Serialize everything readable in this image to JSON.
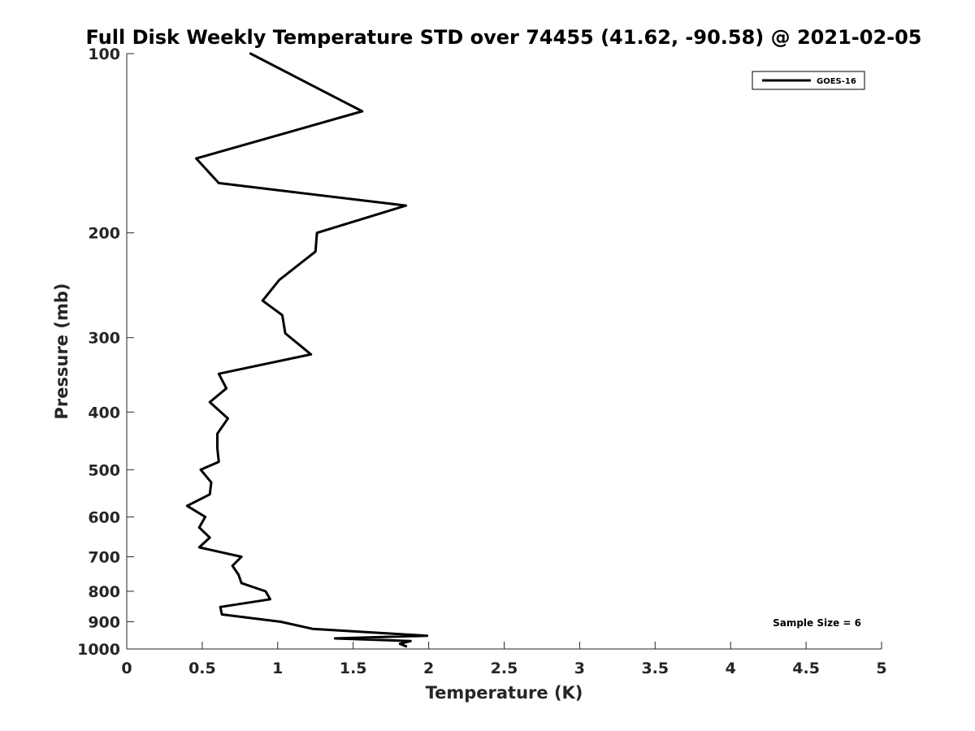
{
  "chart_data": {
    "type": "line",
    "title": "Full Disk Weekly Temperature STD over 74455 (41.62, -90.58) @ 2021-02-05",
    "xlabel": "Temperature (K)",
    "ylabel": "Pressure (mb)",
    "xlim": [
      0,
      5
    ],
    "ylim": [
      100,
      1000
    ],
    "y_scale": "log",
    "y_reversed": true,
    "x_ticks": [
      0,
      0.5,
      1,
      1.5,
      2,
      2.5,
      3,
      3.5,
      4,
      4.5,
      5
    ],
    "x_tick_labels": [
      "0",
      "0.5",
      "1",
      "1.5",
      "2",
      "2.5",
      "3",
      "3.5",
      "4",
      "4.5",
      "5"
    ],
    "y_ticks": [
      100,
      200,
      300,
      400,
      500,
      600,
      700,
      800,
      900,
      1000
    ],
    "y_tick_labels": [
      "100",
      "200",
      "300",
      "400",
      "500",
      "600",
      "700",
      "800",
      "900",
      "1000"
    ],
    "grid": false,
    "legend_position": "top-right",
    "annotation": "Sample Size = 6",
    "series": [
      {
        "name": "GOES-16",
        "color": "#000000",
        "x": [
          0.82,
          1.56,
          0.46,
          0.61,
          1.85,
          1.26,
          1.25,
          1.01,
          0.9,
          1.03,
          1.05,
          1.22,
          0.61,
          0.66,
          0.55,
          0.67,
          0.6,
          0.6,
          0.61,
          0.49,
          0.56,
          0.55,
          0.4,
          0.52,
          0.48,
          0.55,
          0.48,
          0.76,
          0.7,
          0.74,
          0.76,
          0.92,
          0.95,
          0.62,
          0.63,
          1.02,
          1.23,
          1.99,
          1.38,
          1.88,
          1.81,
          1.85
        ],
        "y": [
          100,
          125,
          150,
          165,
          180,
          200,
          215,
          240,
          260,
          275,
          295,
          320,
          345,
          365,
          385,
          410,
          435,
          460,
          485,
          500,
          525,
          550,
          575,
          600,
          625,
          650,
          675,
          700,
          725,
          750,
          775,
          800,
          825,
          850,
          875,
          900,
          925,
          950,
          960,
          970,
          980,
          990
        ]
      }
    ]
  }
}
